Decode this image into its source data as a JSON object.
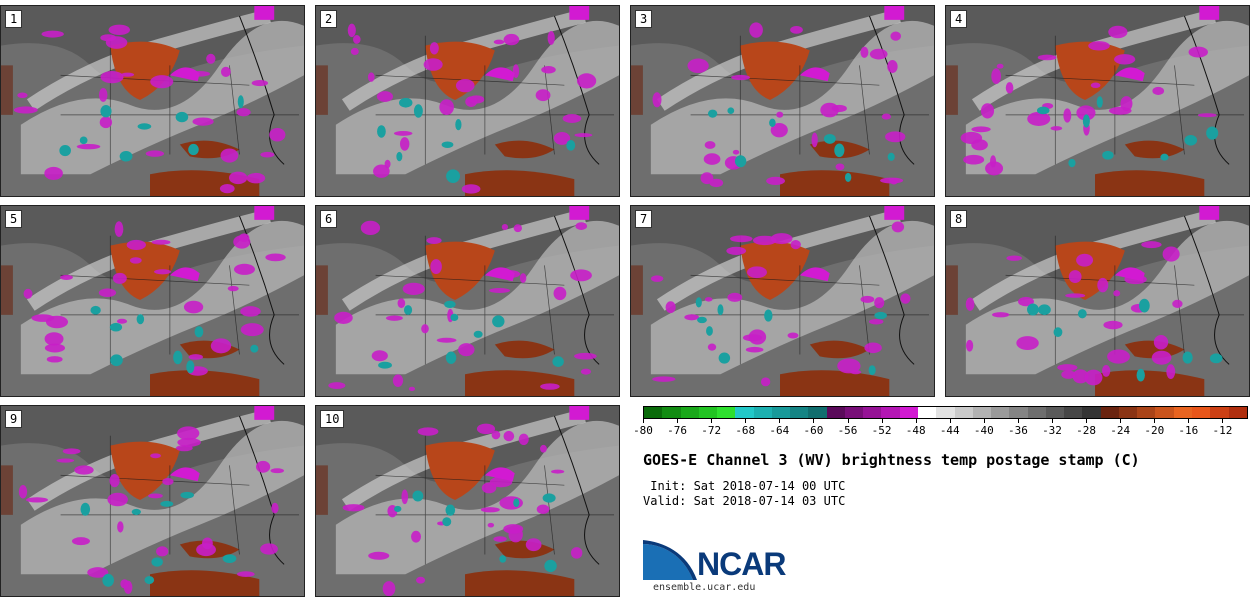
{
  "panels": [
    {
      "label": "1"
    },
    {
      "label": "2"
    },
    {
      "label": "3"
    },
    {
      "label": "4"
    },
    {
      "label": "5"
    },
    {
      "label": "6"
    },
    {
      "label": "7"
    },
    {
      "label": "8"
    },
    {
      "label": "9"
    },
    {
      "label": "10"
    }
  ],
  "colorbar": {
    "colors": [
      "#0a6b0a",
      "#128c12",
      "#1aa81a",
      "#22c422",
      "#2ee02e",
      "#22c8c8",
      "#1cb0b0",
      "#189a9a",
      "#148484",
      "#106e6e",
      "#5a0a5a",
      "#780e78",
      "#961296",
      "#b416b4",
      "#d21ad2",
      "#ffffff",
      "#e2e2e2",
      "#cacaca",
      "#b2b2b2",
      "#9a9a9a",
      "#848484",
      "#6e6e6e",
      "#5a5a5a",
      "#464646",
      "#343434",
      "#6a2410",
      "#8a3414",
      "#aa4418",
      "#ca541c",
      "#e86420",
      "#e8561a",
      "#cc4014",
      "#b02e0e"
    ],
    "ticks": [
      "-80",
      "-76",
      "-72",
      "-68",
      "-64",
      "-60",
      "-56",
      "-52",
      "-48",
      "-44",
      "-40",
      "-36",
      "-32",
      "-28",
      "-24",
      "-20",
      "-16",
      "-12"
    ],
    "range": [
      -80,
      -9
    ]
  },
  "title": "GOES-E Channel 3 (WV) brightness temp postage stamp (C)",
  "init_line": " Init: Sat 2018-07-14 00 UTC",
  "valid_line": "Valid: Sat 2018-07-14 03 UTC",
  "logo": {
    "text": "NCAR",
    "color": "#0a3a7a",
    "swoosh_color": "#1a6fb5"
  },
  "url": "ensemble.ucar.edu"
}
